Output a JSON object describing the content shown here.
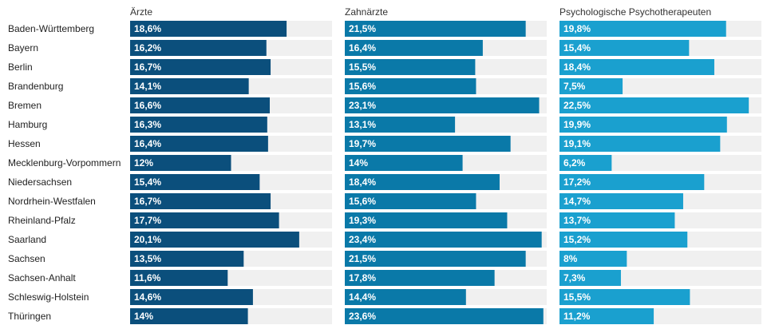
{
  "chart_data": {
    "type": "bar",
    "orientation": "horizontal",
    "layout": "small-multiples",
    "categories": [
      "Baden-Württemberg",
      "Bayern",
      "Berlin",
      "Brandenburg",
      "Bremen",
      "Hamburg",
      "Hessen",
      "Mecklenburg-Vorpommern",
      "Niedersachsen",
      "Nordrhein-Westfalen",
      "Rheinland-Pfalz",
      "Saarland",
      "Sachsen",
      "Sachsen-Anhalt",
      "Schleswig-Holstein",
      "Thüringen"
    ],
    "xlim": [
      0,
      24
    ],
    "grid": false,
    "legend": "none",
    "track_color": "#f0f0f0",
    "series": [
      {
        "name": "Ärzte",
        "color": "#0b4f7c",
        "values": [
          18.6,
          16.2,
          16.7,
          14.1,
          16.6,
          16.3,
          16.4,
          12,
          15.4,
          16.7,
          17.7,
          20.1,
          13.5,
          11.6,
          14.6,
          14
        ],
        "labels": [
          "18,6%",
          "16,2%",
          "16,7%",
          "14,1%",
          "16,6%",
          "16,3%",
          "16,4%",
          "12%",
          "15,4%",
          "16,7%",
          "17,7%",
          "20,1%",
          "13,5%",
          "11,6%",
          "14,6%",
          "14%"
        ]
      },
      {
        "name": "Zahnärzte",
        "color": "#0a79a8",
        "values": [
          21.5,
          16.4,
          15.5,
          15.6,
          23.1,
          13.1,
          19.7,
          14,
          18.4,
          15.6,
          19.3,
          23.4,
          21.5,
          17.8,
          14.4,
          23.6
        ],
        "labels": [
          "21,5%",
          "16,4%",
          "15,5%",
          "15,6%",
          "23,1%",
          "13,1%",
          "19,7%",
          "14%",
          "18,4%",
          "15,6%",
          "19,3%",
          "23,4%",
          "21,5%",
          "17,8%",
          "14,4%",
          "23,6%"
        ]
      },
      {
        "name": "Psychologische Psychotherapeuten",
        "color": "#1aa0cf",
        "values": [
          19.8,
          15.4,
          18.4,
          7.5,
          22.5,
          19.9,
          19.1,
          6.2,
          17.2,
          14.7,
          13.7,
          15.2,
          8,
          7.3,
          15.5,
          11.2
        ],
        "labels": [
          "19,8%",
          "15,4%",
          "18,4%",
          "7,5%",
          "22,5%",
          "19,9%",
          "19,1%",
          "6,2%",
          "17,2%",
          "14,7%",
          "13,7%",
          "15,2%",
          "8%",
          "7,3%",
          "15,5%",
          "11,2%"
        ]
      }
    ]
  }
}
